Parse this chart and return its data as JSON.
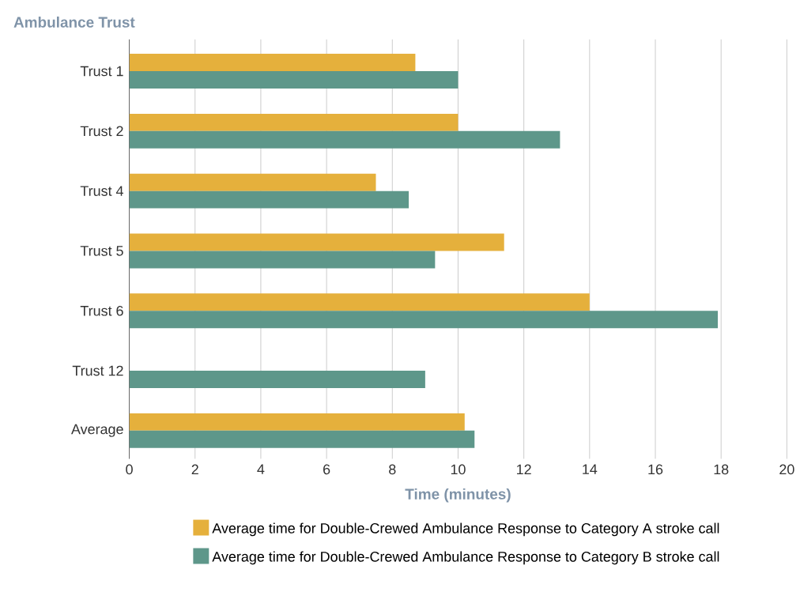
{
  "chart_data": {
    "type": "bar",
    "orientation": "horizontal",
    "ylabel": "Ambulance Trust",
    "xlabel": "Time (minutes)",
    "categories": [
      "Trust 1",
      "Trust 2",
      "Trust 4",
      "Trust 5",
      "Trust 6",
      "Trust 12",
      "Average"
    ],
    "series": [
      {
        "name": "Average time for Double-Crewed Ambulance Response to Category A stroke call",
        "color": "#e5b03c",
        "values": [
          8.7,
          10.0,
          7.5,
          11.4,
          14.0,
          null,
          10.2
        ]
      },
      {
        "name": "Average time for Double-Crewed Ambulance Response to Category B stroke call",
        "color": "#5e978a",
        "values": [
          10.0,
          13.1,
          8.5,
          9.3,
          17.9,
          9.0,
          10.5
        ]
      }
    ],
    "xlim": [
      0,
      20
    ],
    "xticks": [
      0,
      2,
      4,
      6,
      8,
      10,
      12,
      14,
      16,
      18,
      20
    ],
    "grid": "x",
    "legend": "bottom"
  }
}
